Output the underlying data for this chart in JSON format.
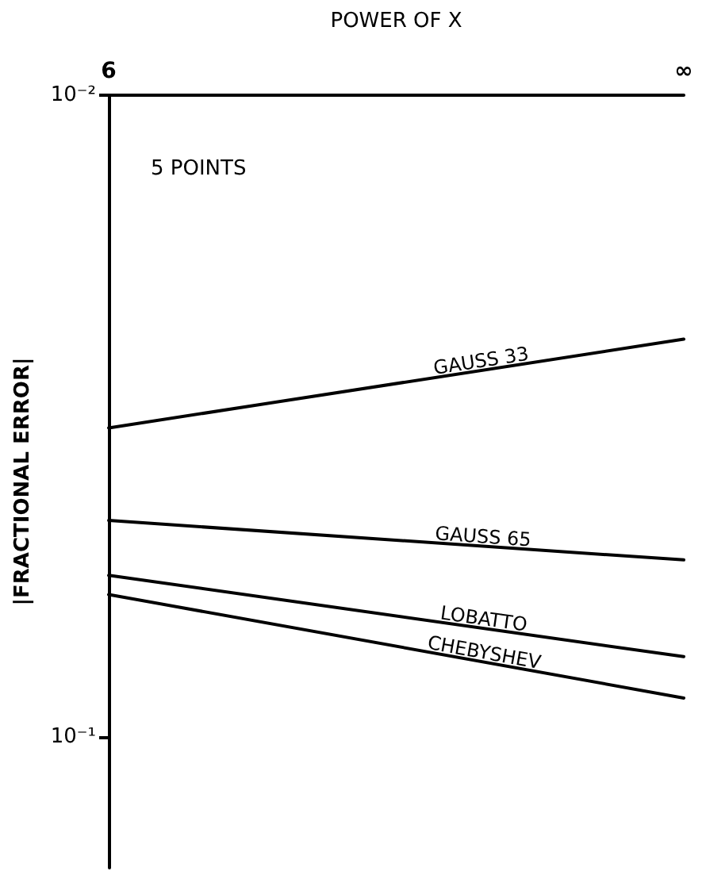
{
  "chart_data": {
    "type": "line",
    "xlabel": "POWER OF X",
    "ylabel": "|FRACTIONAL ERROR|",
    "annotations": [
      "5 POINTS"
    ],
    "categories": [
      "6",
      "∞"
    ],
    "series": [
      {
        "name": "GAUSS 33",
        "color": "#000000",
        "values": [
          0.033,
          0.024
        ]
      },
      {
        "name": "GAUSS 65",
        "color": "#000000",
        "values": [
          0.046,
          0.053
        ]
      },
      {
        "name": "LOBATTO",
        "color": "#000000",
        "values": [
          0.056,
          0.075
        ]
      },
      {
        "name": "CHEBYSHEV",
        "color": "#000000",
        "values": [
          0.06,
          0.087
        ]
      }
    ],
    "log": "y",
    "ylim": [
      0.16,
      0.01
    ],
    "yticks": [
      {
        "value": 0.01,
        "label": "10⁻²"
      },
      {
        "value": 0.1,
        "label": "10⁻¹"
      }
    ],
    "grid": false,
    "legend": false,
    "marker": "none",
    "line_style": "solid"
  }
}
